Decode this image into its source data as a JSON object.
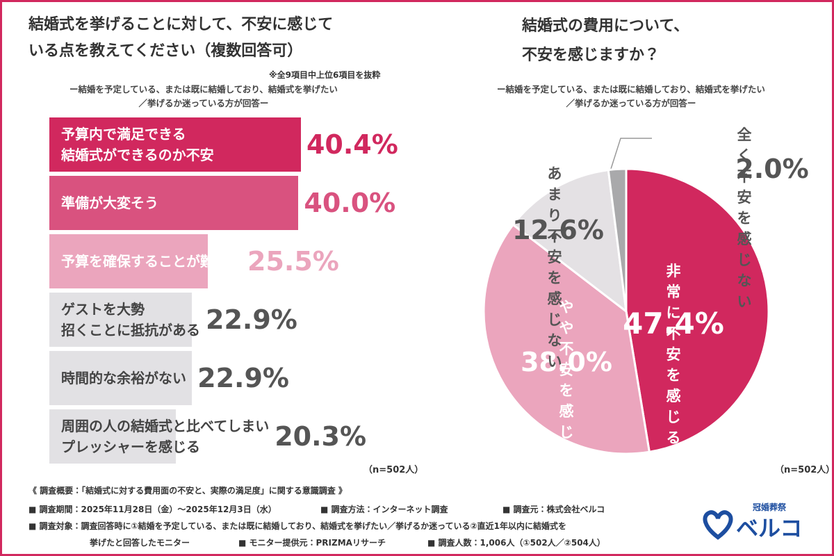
{
  "chart_data": [
    {
      "type": "bar",
      "title": "結婚式を挙げることに対して、不安に感じて\nいる点を教えてください（複数回答可）",
      "note": "※全9項目中上位6項目を抜粋",
      "subtitle": "ー結婚を予定している、または既に結婚しており、結婚式を挙げたい\n／挙げるか迷っている方が回答ー",
      "categories": [
        "予算内で満足できる\n結婚式ができるのか不安",
        "準備が大変そう",
        "予算を確保することが難しい",
        "ゲストを大勢\n招くことに抵抗がある",
        "時間的な余裕がない",
        "周囲の人の結婚式と比べてしまい\nプレッシャーを感じる"
      ],
      "values": [
        40.4,
        40.0,
        25.5,
        22.9,
        22.9,
        20.3
      ],
      "value_labels": [
        "40.4%",
        "40.0%",
        "25.5%",
        "22.9%",
        "22.9%",
        "20.3%"
      ],
      "colors": [
        "#d1285e",
        "#d9527f",
        "#eba5bd",
        "#e2e1e4",
        "#e2e1e4",
        "#e2e1e4"
      ],
      "text_colors": [
        "#ffffff",
        "#ffffff",
        "#ffffff",
        "#444444",
        "#444444",
        "#444444"
      ],
      "value_colors": [
        "#d1285e",
        "#d9527f",
        "#eba5bd",
        "#555555",
        "#555555",
        "#555555"
      ],
      "sample": "（n=502人）"
    },
    {
      "type": "pie",
      "title": "結婚式の費用について、\n不安を感じますか？",
      "subtitle": "ー結婚を予定している、または既に結婚しており、結婚式を挙げたい\n／挙げるか迷っている方が回答ー",
      "categories": [
        "非常に\n不安を感じる",
        "やや\n不安を感じる",
        "あまり\n不安を感じない",
        "全く不安を感じない"
      ],
      "values": [
        47.4,
        38.0,
        12.6,
        2.0
      ],
      "value_labels": [
        "47.4%",
        "38.0%",
        "12.6%",
        "2.0%"
      ],
      "colors": [
        "#d1285e",
        "#eba5bd",
        "#e4e1e4",
        "#a9a9ab"
      ],
      "text_colors": [
        "#ffffff",
        "#ffffff",
        "#555555",
        "#555555"
      ],
      "sample": "（n=502人）"
    }
  ],
  "footer": {
    "heading": "《 調査概要：「結婚式に対する費用面の不安と、実際の満足度」に関する意識調査 》",
    "period": "■ 調査期間：2025年11月28日（金）〜2025年12月3日（水）",
    "method": "■ 調査方法：インターネット調査",
    "source": "■ 調査元：株式会社ベルコ",
    "target": "■ 調査対象：調査回答時に①結婚を予定している、または既に結婚しており、結婚式を挙げたい／挙げるか迷っている②直近1年以内に結婚式を",
    "target_cont": "挙げたと回答したモニター",
    "provider": "■ モニター提供元：PRIZMAリサーチ",
    "count": "■ 調査人数：1,006人（①502人／②504人）"
  },
  "logo": {
    "tagline": "冠婚葬祭",
    "name": "ベルコ"
  }
}
